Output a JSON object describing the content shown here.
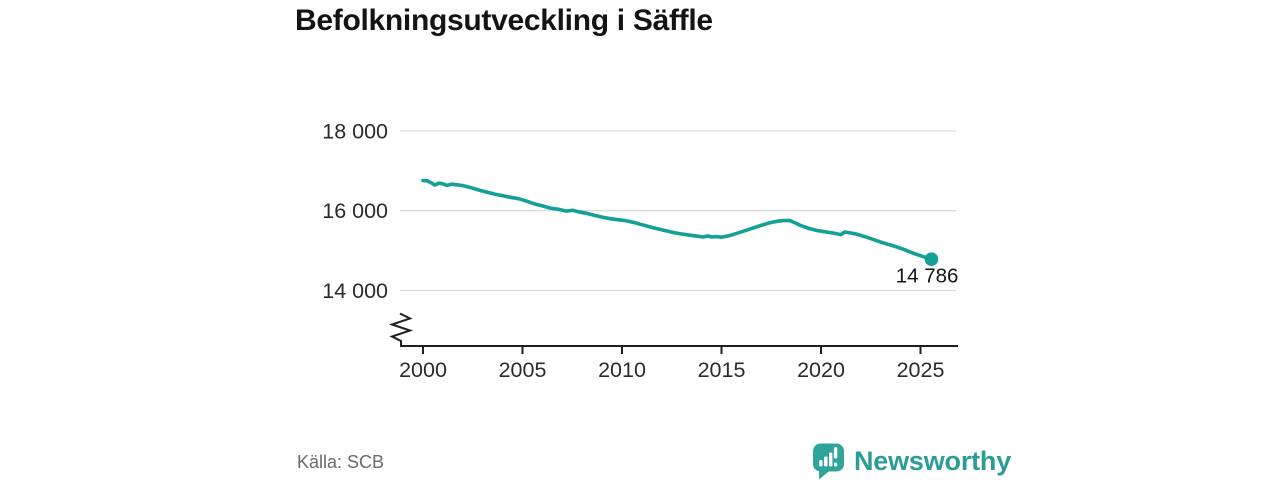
{
  "title": "Befolkningsutveckling i Säffle",
  "source": "Källa: SCB",
  "branding": {
    "name": "Newsworthy",
    "icon": "bar-chart-speech-bubble-icon",
    "color": "#2fa49b"
  },
  "colors": {
    "line": "#14a096",
    "grid": "#dbdbdb",
    "axis": "#1f1f1f",
    "tick_text": "#2b2b2b",
    "end_label_text": "#141414"
  },
  "chart_data": {
    "type": "line",
    "title": "Befolkningsutveckling i Säffle",
    "xlabel": "",
    "ylabel": "",
    "grid": "horizontal",
    "axis_break": true,
    "legend": "none",
    "xlim": [
      1998.8,
      2026.8
    ],
    "ylim_shown_ticks": [
      14000,
      18000
    ],
    "yticks": [
      {
        "value": 18000,
        "label": "18 000"
      },
      {
        "value": 16000,
        "label": "16 000"
      },
      {
        "value": 14000,
        "label": "14 000"
      }
    ],
    "xticks": [
      {
        "value": 2000,
        "label": "2000"
      },
      {
        "value": 2005,
        "label": "2005"
      },
      {
        "value": 2010,
        "label": "2010"
      },
      {
        "value": 2015,
        "label": "2015"
      },
      {
        "value": 2020,
        "label": "2020"
      },
      {
        "value": 2025,
        "label": "2025"
      }
    ],
    "end_label": "14 786",
    "end_value": 14786,
    "series": [
      {
        "name": "Befolkning",
        "color": "#14a096",
        "points": [
          [
            2000.0,
            16755
          ],
          [
            2000.2,
            16750
          ],
          [
            2000.45,
            16690
          ],
          [
            2000.6,
            16645
          ],
          [
            2000.8,
            16690
          ],
          [
            2001.0,
            16675
          ],
          [
            2001.2,
            16635
          ],
          [
            2001.45,
            16665
          ],
          [
            2001.7,
            16650
          ],
          [
            2002.0,
            16630
          ],
          [
            2002.4,
            16580
          ],
          [
            2002.8,
            16520
          ],
          [
            2003.2,
            16465
          ],
          [
            2003.6,
            16415
          ],
          [
            2004.0,
            16375
          ],
          [
            2004.4,
            16335
          ],
          [
            2004.8,
            16300
          ],
          [
            2005.2,
            16240
          ],
          [
            2005.6,
            16170
          ],
          [
            2006.0,
            16120
          ],
          [
            2006.4,
            16065
          ],
          [
            2006.8,
            16035
          ],
          [
            2007.2,
            15990
          ],
          [
            2007.5,
            16010
          ],
          [
            2007.8,
            15975
          ],
          [
            2008.2,
            15935
          ],
          [
            2008.6,
            15885
          ],
          [
            2009.0,
            15840
          ],
          [
            2009.4,
            15800
          ],
          [
            2009.8,
            15775
          ],
          [
            2010.2,
            15750
          ],
          [
            2010.6,
            15705
          ],
          [
            2011.0,
            15650
          ],
          [
            2011.4,
            15595
          ],
          [
            2011.8,
            15545
          ],
          [
            2012.2,
            15495
          ],
          [
            2012.6,
            15450
          ],
          [
            2013.0,
            15415
          ],
          [
            2013.4,
            15385
          ],
          [
            2013.8,
            15360
          ],
          [
            2014.1,
            15340
          ],
          [
            2014.3,
            15368
          ],
          [
            2014.5,
            15342
          ],
          [
            2014.75,
            15352
          ],
          [
            2015.0,
            15335
          ],
          [
            2015.4,
            15375
          ],
          [
            2015.8,
            15435
          ],
          [
            2016.2,
            15500
          ],
          [
            2016.6,
            15570
          ],
          [
            2017.0,
            15635
          ],
          [
            2017.4,
            15695
          ],
          [
            2017.8,
            15735
          ],
          [
            2018.1,
            15752
          ],
          [
            2018.4,
            15756
          ],
          [
            2018.7,
            15695
          ],
          [
            2019.0,
            15625
          ],
          [
            2019.4,
            15555
          ],
          [
            2019.8,
            15505
          ],
          [
            2020.2,
            15470
          ],
          [
            2020.6,
            15440
          ],
          [
            2021.0,
            15402
          ],
          [
            2021.2,
            15465
          ],
          [
            2021.5,
            15442
          ],
          [
            2021.8,
            15412
          ],
          [
            2022.2,
            15352
          ],
          [
            2022.6,
            15282
          ],
          [
            2023.0,
            15212
          ],
          [
            2023.4,
            15152
          ],
          [
            2023.8,
            15092
          ],
          [
            2024.2,
            15022
          ],
          [
            2024.6,
            14942
          ],
          [
            2025.0,
            14872
          ],
          [
            2025.3,
            14822
          ],
          [
            2025.55,
            14786
          ]
        ]
      }
    ]
  }
}
